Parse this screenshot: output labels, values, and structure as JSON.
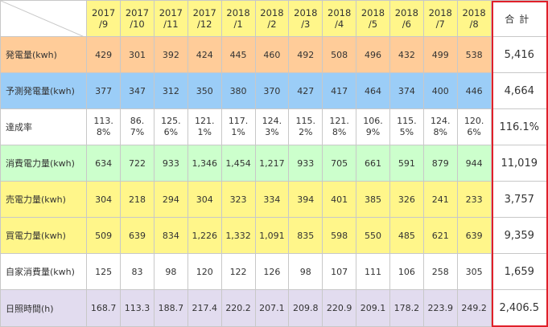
{
  "header": {
    "months": [
      "2017\n/9",
      "2017\n/10",
      "2017\n/11",
      "2017\n/12",
      "2018\n/1",
      "2018\n/2",
      "2018\n/3",
      "2018\n/4",
      "2018\n/5",
      "2018\n/6",
      "2018\n/7",
      "2018\n/8"
    ],
    "total_label": "合計"
  },
  "rows": [
    {
      "label": "発電量(kwh)",
      "values": [
        "429",
        "301",
        "392",
        "424",
        "445",
        "460",
        "492",
        "508",
        "496",
        "432",
        "499",
        "538"
      ],
      "total": "5,416"
    },
    {
      "label": "予測発電量(kwh)",
      "values": [
        "377",
        "347",
        "312",
        "350",
        "380",
        "370",
        "427",
        "417",
        "464",
        "374",
        "400",
        "446"
      ],
      "total": "4,664"
    },
    {
      "label": "達成率",
      "values": [
        "113.\n8%",
        "86.\n7%",
        "125.\n6%",
        "121.\n1%",
        "117.\n1%",
        "124.\n3%",
        "115.\n2%",
        "121.\n8%",
        "106.\n9%",
        "115.\n5%",
        "124.\n8%",
        "120.\n6%"
      ],
      "total": "116.1%"
    },
    {
      "label": "消費電力量(kwh)",
      "values": [
        "634",
        "722",
        "933",
        "1,346",
        "1,454",
        "1,217",
        "933",
        "705",
        "661",
        "591",
        "879",
        "944"
      ],
      "total": "11,019"
    },
    {
      "label": "売電力量(kwh)",
      "values": [
        "304",
        "218",
        "294",
        "304",
        "323",
        "334",
        "394",
        "401",
        "385",
        "326",
        "241",
        "233"
      ],
      "total": "3,757"
    },
    {
      "label": "買電力量(kwh)",
      "values": [
        "509",
        "639",
        "834",
        "1,226",
        "1,332",
        "1,091",
        "835",
        "598",
        "550",
        "485",
        "621",
        "639"
      ],
      "total": "9,359"
    },
    {
      "label": "自家消費量(kwh)",
      "values": [
        "125",
        "83",
        "98",
        "120",
        "122",
        "126",
        "98",
        "107",
        "111",
        "106",
        "258",
        "305"
      ],
      "total": "1,659"
    },
    {
      "label": "日照時間(h)",
      "values": [
        "168.7",
        "113.3",
        "188.7",
        "217.4",
        "220.2",
        "207.1",
        "209.8",
        "220.9",
        "209.1",
        "178.2",
        "223.9",
        "249.2"
      ],
      "total": "2,406.5"
    }
  ],
  "colors": {
    "orange": "#ffcc99",
    "blue": "#9bcdf7",
    "green": "#ccffcc",
    "yellow": "#fff68a",
    "lavender": "#e2dcef",
    "total_border": "#e0202a"
  }
}
